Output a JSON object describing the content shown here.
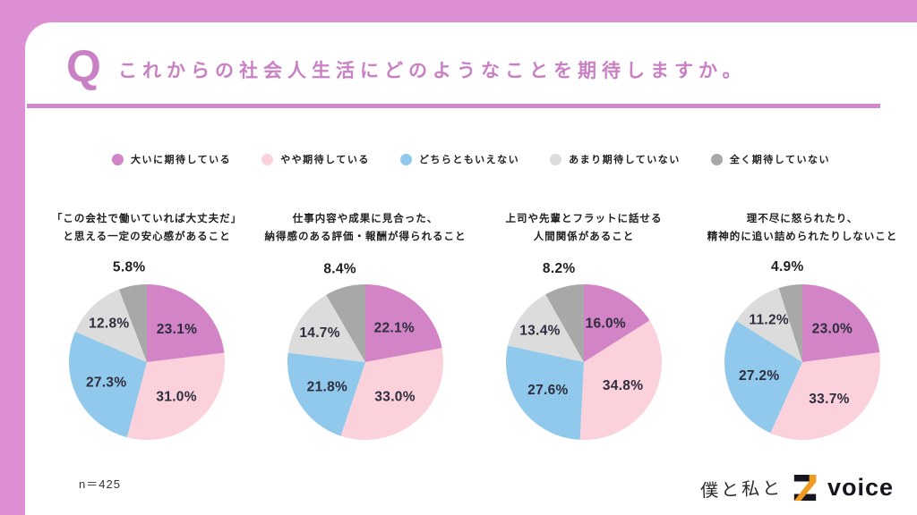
{
  "theme": {
    "frame": "#DC8FD2",
    "accent": "#C980C4",
    "divider": "#D287CB",
    "label": "#2E2E3E",
    "text": "#1F1F1F",
    "brand_orange": "#F09B1F",
    "brand_dark": "#16161E"
  },
  "header": {
    "q_mark": "Q",
    "title": "これからの社会人生活にどのようなことを期待しますか。"
  },
  "legend": {
    "position": "top-center",
    "items": [
      {
        "label": "大いに期待している",
        "color": "#D284C6"
      },
      {
        "label": "やや期待している",
        "color": "#FBD1DC"
      },
      {
        "label": "どちらともいえない",
        "color": "#90C9EB"
      },
      {
        "label": "あまり期待していない",
        "color": "#DCDCDC"
      },
      {
        "label": "全く期待していない",
        "color": "#A8A8A8"
      }
    ]
  },
  "chart_data": [
    {
      "type": "pie",
      "title_lines": [
        "「この会社で働いていれば大丈夫だ」",
        "と思える一定の安心感があること"
      ],
      "categories": [
        "大いに期待している",
        "やや期待している",
        "どちらともいえない",
        "あまり期待していない",
        "全く期待していない"
      ],
      "values": [
        23.1,
        31.0,
        27.3,
        12.8,
        5.8
      ],
      "start_angle_deg": 0,
      "direction": "clockwise"
    },
    {
      "type": "pie",
      "title_lines": [
        "仕事内容や成果に見合った、",
        "納得感のある評価・報酬が得られること"
      ],
      "categories": [
        "大いに期待している",
        "やや期待している",
        "どちらともいえない",
        "あまり期待していない",
        "全く期待していない"
      ],
      "values": [
        22.1,
        33.0,
        21.8,
        14.7,
        8.4
      ],
      "start_angle_deg": 0,
      "direction": "clockwise"
    },
    {
      "type": "pie",
      "title_lines": [
        "上司や先輩とフラットに話せる",
        "人間関係があること"
      ],
      "categories": [
        "大いに期待している",
        "やや期待している",
        "どちらともいえない",
        "あまり期待していない",
        "全く期待していない"
      ],
      "values": [
        16.0,
        34.8,
        27.6,
        13.4,
        8.2
      ],
      "start_angle_deg": 0,
      "direction": "clockwise"
    },
    {
      "type": "pie",
      "title_lines": [
        "理不尽に怒られたり、",
        "精神的に追い詰められたりしないこと"
      ],
      "categories": [
        "大いに期待している",
        "やや期待している",
        "どちらともいえない",
        "あまり期待していない",
        "全く期待していない"
      ],
      "values": [
        23.0,
        33.7,
        27.2,
        11.2,
        4.9
      ],
      "start_angle_deg": 0,
      "direction": "clockwise"
    }
  ],
  "footer": {
    "sample_size": "n＝425",
    "brand_script": "僕と私と",
    "brand_voice": "voice"
  }
}
